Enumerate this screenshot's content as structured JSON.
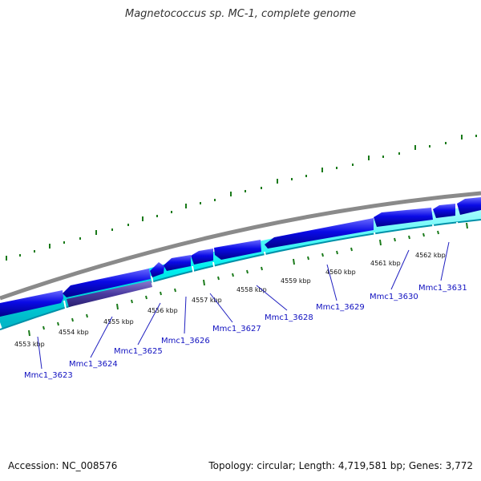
{
  "title": "Magnetococcus sp. MC-1, complete genome",
  "footer": {
    "accession": "Accession: NC_008576",
    "summary": "Topology: circular; Length: 4,719,581 bp; Genes: 3,772"
  },
  "scale_labels": [
    "4553 kbp",
    "4554 kbp",
    "4555 kbp",
    "4556 kbp",
    "4557 kbp",
    "4558 kbp",
    "4559 kbp",
    "4560 kbp",
    "4561 kbp",
    "4562 kbp"
  ],
  "gene_labels": [
    "Mmc1_3623",
    "Mmc1_3624",
    "Mmc1_3625",
    "Mmc1_3626",
    "Mmc1_3627",
    "Mmc1_3628",
    "Mmc1_3629",
    "Mmc1_3630",
    "Mmc1_3631"
  ],
  "colors": {
    "backbone": "#8a8a8a",
    "cds_arrow": "#0a0ae6",
    "cds_arrow_dark": "#4a3aa0",
    "cds_band": "#00f0f0",
    "tick": "#1a7a1a",
    "gene_label": "#1010c0",
    "leader_line": "#2020c0"
  }
}
